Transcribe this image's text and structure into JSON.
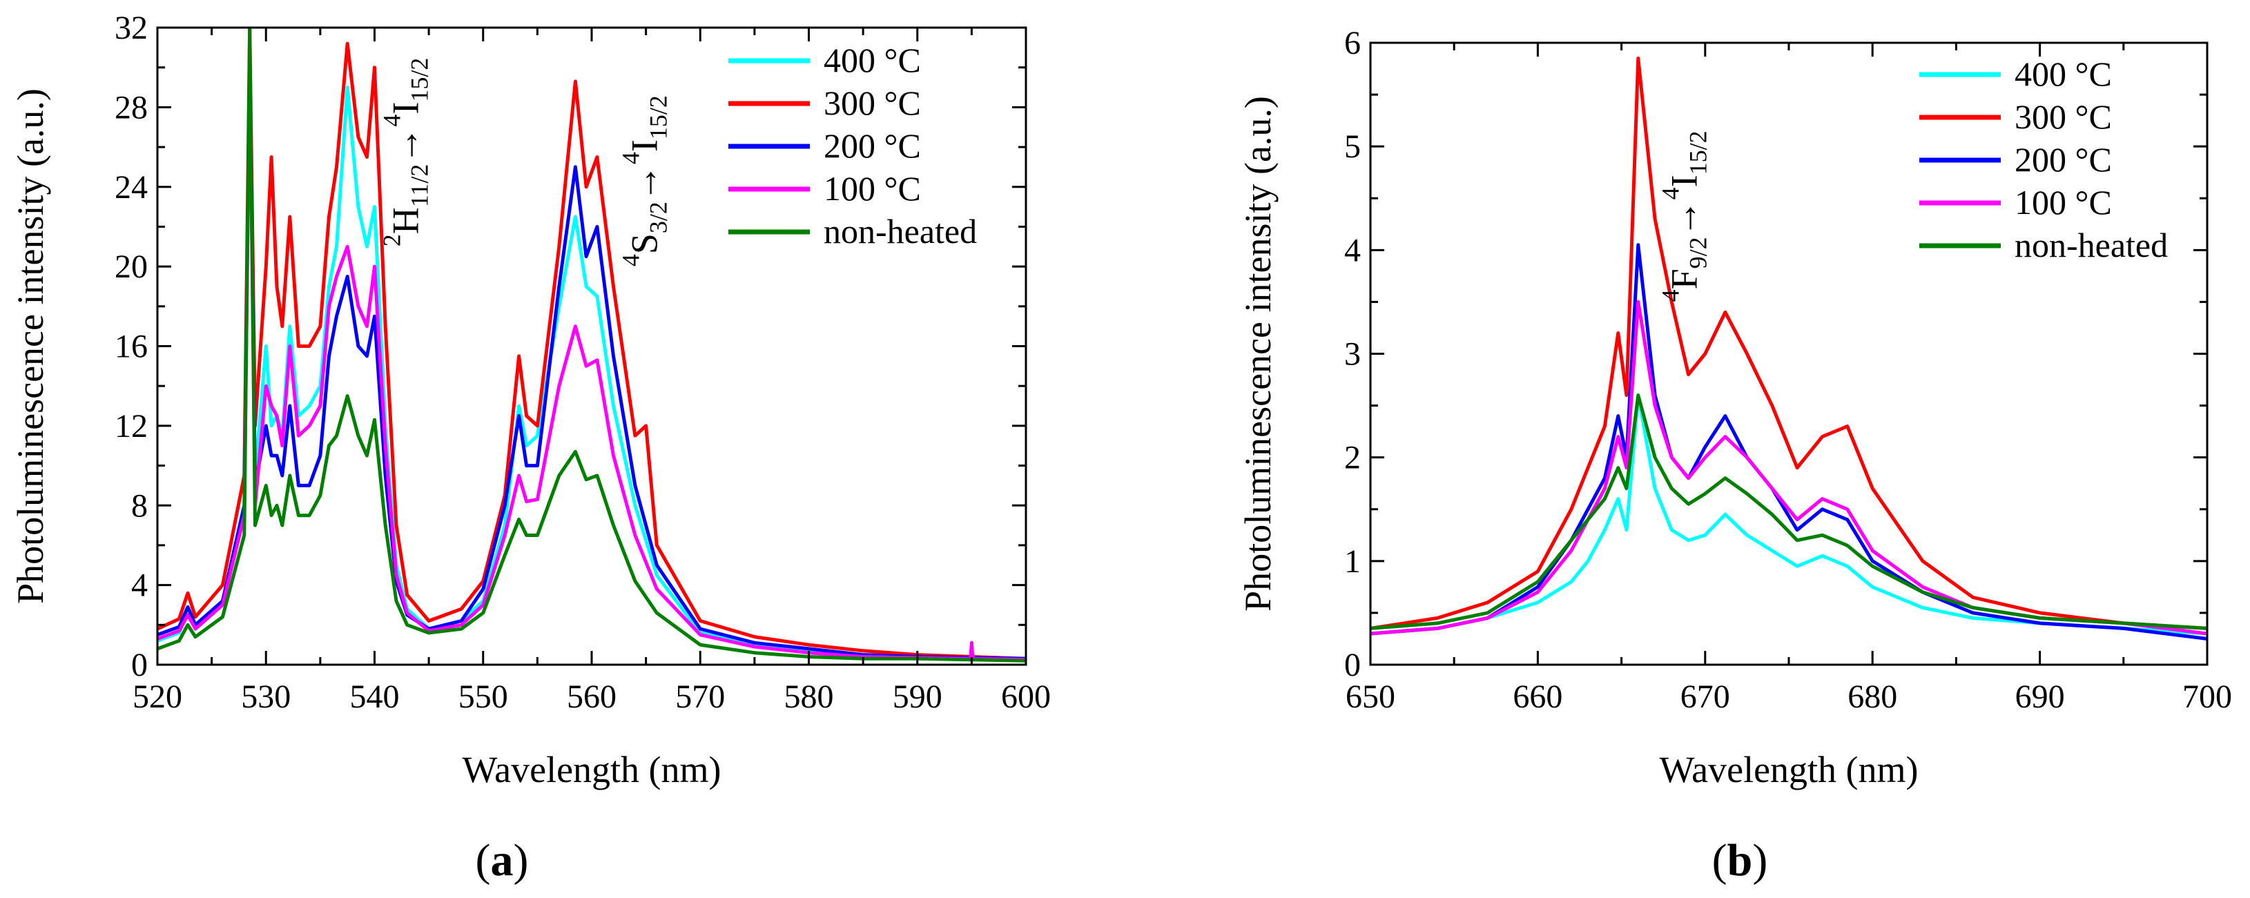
{
  "chart_data": [
    {
      "type": "line",
      "panel_label_prefix": "(",
      "panel_label": "a",
      "panel_label_suffix": ")",
      "xlabel": "Wavelength (nm)",
      "ylabel": "Photoluminescence intensity (a.u.)",
      "xlim": [
        520,
        600
      ],
      "ylim": [
        0,
        32
      ],
      "xticks": [
        520,
        530,
        540,
        550,
        560,
        570,
        580,
        590,
        600
      ],
      "yticks": [
        0,
        4,
        8,
        12,
        16,
        20,
        24,
        28,
        32
      ],
      "legend_position": "top-right",
      "annotations": [
        {
          "base": "H",
          "pre_sup": "2",
          "sub": "11/2",
          "arrow": "→",
          "target_base": "I",
          "target_pre_sup": "4",
          "target_sub": "15/2",
          "at_x": 544,
          "at_y": 21
        },
        {
          "base": "S",
          "pre_sup": "4",
          "sub": "3/2",
          "arrow": "→",
          "target_base": "I",
          "target_pre_sup": "4",
          "target_sub": "15/2",
          "at_x": 566,
          "at_y": 20
        }
      ],
      "series": [
        {
          "name": "400 °C",
          "color": "#00ffff",
          "x": [
            520,
            522,
            522.8,
            523.5,
            526,
            528,
            528.5,
            529,
            530,
            530.5,
            531,
            531.5,
            532.2,
            533,
            534,
            535,
            535.8,
            536.5,
            537.5,
            538.5,
            539.3,
            540,
            541,
            542,
            543,
            545,
            548,
            550,
            552,
            553.3,
            554,
            555,
            557,
            558.5,
            559.5,
            560.5,
            562,
            564,
            566,
            570,
            575,
            580,
            585,
            590,
            595,
            600
          ],
          "y": [
            1.2,
            1.6,
            2.6,
            1.8,
            3,
            8,
            30,
            9.5,
            16,
            12,
            12.5,
            11.5,
            17,
            12.5,
            13,
            14,
            19,
            21,
            29,
            23,
            21,
            23,
            12,
            5,
            2.8,
            1.8,
            2.2,
            3.2,
            7,
            13,
            11,
            11.5,
            18,
            22.5,
            19,
            18.5,
            13,
            8,
            4.5,
            1.6,
            1.0,
            0.7,
            0.5,
            0.4,
            0.35,
            0.3
          ]
        },
        {
          "name": "300 °C",
          "color": "#ff0000",
          "x": [
            520,
            522,
            522.8,
            523.5,
            526,
            528,
            528.5,
            529,
            530,
            530.5,
            531,
            531.5,
            532.2,
            533,
            534,
            535,
            535.8,
            536.5,
            537.5,
            538.5,
            539.3,
            540,
            541,
            542,
            543,
            545,
            548,
            550,
            552,
            553.3,
            554,
            555,
            557,
            558.5,
            559.5,
            560.5,
            562,
            564,
            565,
            566,
            570,
            575,
            580,
            585,
            590,
            595,
            600
          ],
          "y": [
            1.8,
            2.3,
            3.6,
            2.4,
            4,
            9.5,
            32,
            12,
            20,
            25.5,
            19,
            17,
            22.5,
            16,
            16,
            17,
            22.5,
            25,
            31.2,
            26.5,
            25.5,
            30,
            17,
            7,
            3.5,
            2.2,
            2.8,
            4.2,
            8.5,
            15.5,
            12.5,
            12,
            21,
            29.3,
            24,
            25.5,
            19,
            11.5,
            12,
            6,
            2.2,
            1.4,
            1.0,
            0.7,
            0.5,
            0.4,
            0.3
          ]
        },
        {
          "name": "200 °C",
          "color": "#0000ff",
          "x": [
            520,
            522,
            522.8,
            523.5,
            526,
            528,
            528.5,
            529,
            530,
            530.5,
            531,
            531.5,
            532.2,
            533,
            534,
            535,
            535.8,
            536.5,
            537.5,
            538.5,
            539.3,
            540,
            541,
            542,
            543,
            545,
            548,
            550,
            552,
            553.3,
            554,
            555,
            557,
            558.5,
            559.5,
            560.5,
            562,
            564,
            566,
            570,
            575,
            580,
            585,
            590,
            595,
            600
          ],
          "y": [
            1.5,
            1.9,
            2.9,
            2.0,
            3.2,
            8,
            31,
            9,
            12,
            10.5,
            10.5,
            9.5,
            13,
            9,
            9,
            10.5,
            15.5,
            17.5,
            19.5,
            16,
            15.5,
            17.5,
            9.5,
            4.2,
            2.5,
            1.8,
            2.2,
            3.8,
            8,
            12.5,
            10,
            10,
            19,
            25,
            20.5,
            22,
            15.5,
            9,
            5,
            1.8,
            1.1,
            0.8,
            0.5,
            0.4,
            0.35,
            0.3
          ]
        },
        {
          "name": "100 °C",
          "color": "#ff00ff",
          "x": [
            520,
            522,
            522.8,
            523.5,
            526,
            528,
            528.5,
            529,
            530,
            530.5,
            531,
            531.5,
            532.2,
            533,
            534,
            535,
            535.8,
            536.5,
            537.5,
            538.5,
            539.3,
            540,
            541,
            542,
            543,
            545,
            548,
            550,
            552,
            553.3,
            554,
            555,
            557,
            558.5,
            559.5,
            560.5,
            562,
            564,
            566,
            570,
            575,
            580,
            585,
            590,
            594.9,
            595,
            595.1,
            600
          ],
          "y": [
            1.3,
            1.7,
            2.5,
            1.8,
            3,
            7.5,
            30,
            8,
            14,
            13,
            12.5,
            11,
            16,
            11.5,
            12,
            13,
            18,
            19.5,
            21,
            18,
            17,
            20,
            11,
            4.5,
            2.6,
            1.7,
            2.0,
            3.0,
            6.5,
            9.5,
            8.2,
            8.3,
            14,
            17,
            15,
            15.3,
            10.5,
            6.5,
            3.8,
            1.5,
            0.9,
            0.6,
            0.4,
            0.35,
            0.3,
            1.1,
            0.3,
            0.25
          ]
        },
        {
          "name": "non-heated",
          "color": "#008000",
          "x": [
            520,
            522,
            522.8,
            523.5,
            526,
            528,
            528.5,
            529,
            530,
            530.5,
            531,
            531.5,
            532.2,
            533,
            534,
            535,
            535.8,
            536.5,
            537.5,
            538.5,
            539.3,
            540,
            541,
            542,
            543,
            545,
            548,
            550,
            552,
            553.3,
            554,
            555,
            557,
            558.5,
            559.5,
            560.5,
            562,
            564,
            566,
            570,
            575,
            580,
            585,
            590,
            595,
            600
          ],
          "y": [
            0.8,
            1.2,
            2.0,
            1.4,
            2.4,
            6.5,
            32,
            7,
            9,
            7.5,
            8,
            7,
            9.5,
            7.5,
            7.5,
            8.5,
            11,
            11.5,
            13.5,
            11.5,
            10.5,
            12.3,
            7,
            3.2,
            2.0,
            1.6,
            1.8,
            2.6,
            5.5,
            7.3,
            6.5,
            6.5,
            9.5,
            10.7,
            9.3,
            9.5,
            7,
            4.2,
            2.6,
            1.0,
            0.6,
            0.4,
            0.3,
            0.3,
            0.25,
            0.2
          ]
        }
      ]
    },
    {
      "type": "line",
      "panel_label_prefix": "(",
      "panel_label": "b",
      "panel_label_suffix": ")",
      "xlabel": "Wavelength (nm)",
      "ylabel": "Photoluminescence intensity (a.u.)",
      "xlim": [
        650,
        700
      ],
      "ylim": [
        0,
        6
      ],
      "xticks": [
        650,
        660,
        670,
        680,
        690,
        700
      ],
      "yticks": [
        0,
        1,
        2,
        3,
        4,
        5,
        6
      ],
      "legend_position": "top-right",
      "annotations": [
        {
          "base": "F",
          "pre_sup": "4",
          "sub": "9/2",
          "arrow": "→",
          "target_base": "I",
          "target_pre_sup": "4",
          "target_sub": "15/2",
          "at_x": 669.5,
          "at_y": 3.5
        }
      ],
      "series": [
        {
          "name": "400 °C",
          "color": "#00ffff",
          "x": [
            650,
            654,
            657,
            660,
            662,
            663,
            664,
            664.8,
            665.3,
            666,
            667,
            668,
            669,
            670,
            671.2,
            672.5,
            674,
            675.5,
            677,
            678.5,
            680,
            683,
            686,
            690,
            695,
            700
          ],
          "y": [
            0.3,
            0.35,
            0.45,
            0.6,
            0.8,
            1.0,
            1.3,
            1.6,
            1.3,
            2.6,
            1.7,
            1.3,
            1.2,
            1.25,
            1.45,
            1.25,
            1.1,
            0.95,
            1.05,
            0.95,
            0.75,
            0.55,
            0.45,
            0.4,
            0.35,
            0.3
          ]
        },
        {
          "name": "300 °C",
          "color": "#ff0000",
          "x": [
            650,
            654,
            657,
            660,
            662,
            663,
            664,
            664.8,
            665.3,
            666,
            667,
            668,
            669,
            670,
            671.2,
            672.5,
            674,
            675.5,
            677,
            678.5,
            680,
            683,
            686,
            690,
            695,
            700
          ],
          "y": [
            0.35,
            0.45,
            0.6,
            0.9,
            1.5,
            1.9,
            2.3,
            3.2,
            2.6,
            5.85,
            4.3,
            3.5,
            2.8,
            3.0,
            3.4,
            3.0,
            2.5,
            1.9,
            2.2,
            2.3,
            1.7,
            1.0,
            0.65,
            0.5,
            0.4,
            0.35
          ]
        },
        {
          "name": "200 °C",
          "color": "#0000ff",
          "x": [
            650,
            654,
            657,
            660,
            662,
            663,
            664,
            664.8,
            665.3,
            666,
            667,
            668,
            669,
            670,
            671.2,
            672.5,
            674,
            675.5,
            677,
            678.5,
            680,
            683,
            686,
            690,
            695,
            700
          ],
          "y": [
            0.3,
            0.35,
            0.45,
            0.75,
            1.2,
            1.5,
            1.8,
            2.4,
            2.0,
            4.05,
            2.6,
            2.0,
            1.8,
            2.1,
            2.4,
            2.0,
            1.7,
            1.3,
            1.5,
            1.4,
            1.0,
            0.7,
            0.5,
            0.4,
            0.35,
            0.25
          ]
        },
        {
          "name": "100 °C",
          "color": "#ff00ff",
          "x": [
            650,
            654,
            657,
            660,
            662,
            663,
            664,
            664.8,
            665.3,
            666,
            667,
            668,
            669,
            670,
            671.2,
            672.5,
            674,
            675.5,
            677,
            678.5,
            680,
            683,
            686,
            690,
            695,
            700
          ],
          "y": [
            0.3,
            0.35,
            0.45,
            0.7,
            1.1,
            1.4,
            1.7,
            2.2,
            1.9,
            3.5,
            2.5,
            2.0,
            1.8,
            2.0,
            2.2,
            2.0,
            1.7,
            1.4,
            1.6,
            1.5,
            1.1,
            0.75,
            0.55,
            0.45,
            0.4,
            0.3
          ]
        },
        {
          "name": "non-heated",
          "color": "#008000",
          "x": [
            650,
            654,
            657,
            660,
            662,
            663,
            664,
            664.8,
            665.3,
            666,
            667,
            668,
            669,
            670,
            671.2,
            672.5,
            674,
            675.5,
            677,
            678.5,
            680,
            683,
            686,
            690,
            695,
            700
          ],
          "y": [
            0.35,
            0.4,
            0.5,
            0.8,
            1.2,
            1.4,
            1.6,
            1.9,
            1.7,
            2.6,
            2.0,
            1.7,
            1.55,
            1.65,
            1.8,
            1.65,
            1.45,
            1.2,
            1.25,
            1.15,
            0.95,
            0.7,
            0.55,
            0.45,
            0.4,
            0.35
          ]
        }
      ]
    }
  ]
}
